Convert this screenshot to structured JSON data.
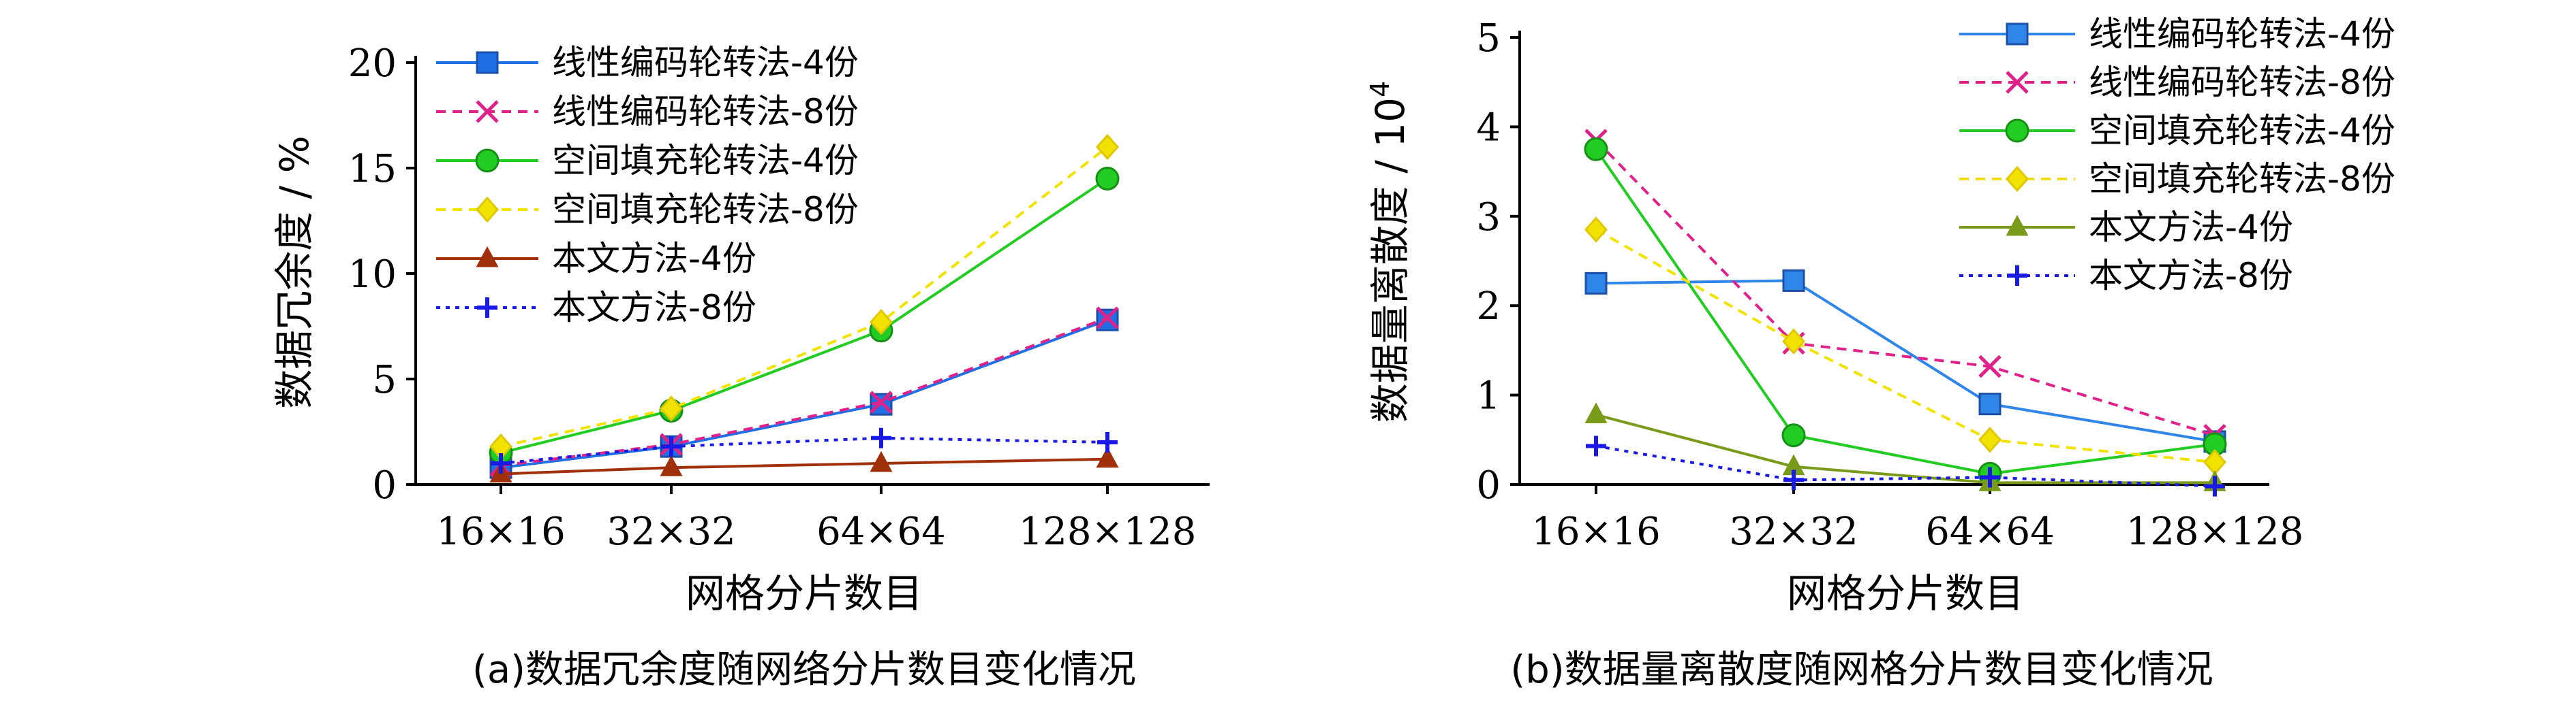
{
  "chart_data": [
    {
      "type": "line",
      "title": "",
      "caption": "(a)数据冗余度随网络分片数目变化情况",
      "xlabel": "网格分片数目",
      "ylabel": "数据冗余度 / %",
      "ylabel_unit_sup": "",
      "categories": [
        "16×16",
        "32×32",
        "64×64",
        "128×128"
      ],
      "ylim": [
        0,
        20
      ],
      "yticks": [
        0,
        5,
        10,
        15,
        20
      ],
      "legend_position": "top-left",
      "series": [
        {
          "name": "线性编码轮转法-4份",
          "color": "#1f6fe5",
          "marker": "square",
          "dash": "solid",
          "values": [
            0.8,
            1.8,
            3.8,
            7.8
          ]
        },
        {
          "name": "线性编码轮转法-8份",
          "color": "#e0218a",
          "marker": "x",
          "dash": "dashed",
          "values": [
            0.9,
            1.9,
            3.9,
            7.9
          ]
        },
        {
          "name": "空间填充轮转法-4份",
          "color": "#22cc22",
          "marker": "circle",
          "dash": "solid",
          "values": [
            1.5,
            3.5,
            7.3,
            14.5
          ]
        },
        {
          "name": "空间填充轮转法-8份",
          "color": "#f2e200",
          "marker": "diamond",
          "dash": "dashed",
          "values": [
            1.8,
            3.6,
            7.7,
            16.0
          ]
        },
        {
          "name": "本文方法-4份",
          "color": "#a0300a",
          "marker": "triangle",
          "dash": "solid",
          "values": [
            0.5,
            0.8,
            1.0,
            1.2
          ]
        },
        {
          "name": "本文方法-8份",
          "color": "#1a1ae6",
          "marker": "plus",
          "dash": "dotted",
          "values": [
            1.0,
            1.8,
            2.2,
            2.0
          ]
        }
      ]
    },
    {
      "type": "line",
      "title": "",
      "caption": "(b)数据量离散度随网格分片数目变化情况",
      "xlabel": "网格分片数目",
      "ylabel": "数据量离散度 / 10",
      "ylabel_unit_sup": "4",
      "categories": [
        "16×16",
        "32×32",
        "64×64",
        "128×128"
      ],
      "ylim": [
        0,
        5
      ],
      "yticks": [
        0,
        1,
        2,
        3,
        4,
        5
      ],
      "legend_position": "top-right",
      "series": [
        {
          "name": "线性编码轮转法-4份",
          "color": "#2f86e8",
          "marker": "square",
          "dash": "solid",
          "values": [
            2.25,
            2.28,
            0.9,
            0.48
          ]
        },
        {
          "name": "线性编码轮转法-8份",
          "color": "#e0218a",
          "marker": "x",
          "dash": "dashed",
          "values": [
            3.85,
            1.58,
            1.32,
            0.55
          ]
        },
        {
          "name": "空间填充轮转法-4份",
          "color": "#22cc22",
          "marker": "circle",
          "dash": "solid",
          "values": [
            3.75,
            0.55,
            0.12,
            0.45
          ]
        },
        {
          "name": "空间填充轮转法-8份",
          "color": "#f2e200",
          "marker": "diamond",
          "dash": "dashed",
          "values": [
            2.85,
            1.6,
            0.5,
            0.25
          ]
        },
        {
          "name": "本文方法-4份",
          "color": "#7a9a1a",
          "marker": "triangle",
          "dash": "solid",
          "values": [
            0.78,
            0.2,
            0.02,
            0.02
          ]
        },
        {
          "name": "本文方法-8份",
          "color": "#1a1ae6",
          "marker": "plus",
          "dash": "dotted",
          "values": [
            0.43,
            0.05,
            0.08,
            -0.02
          ]
        }
      ]
    }
  ]
}
